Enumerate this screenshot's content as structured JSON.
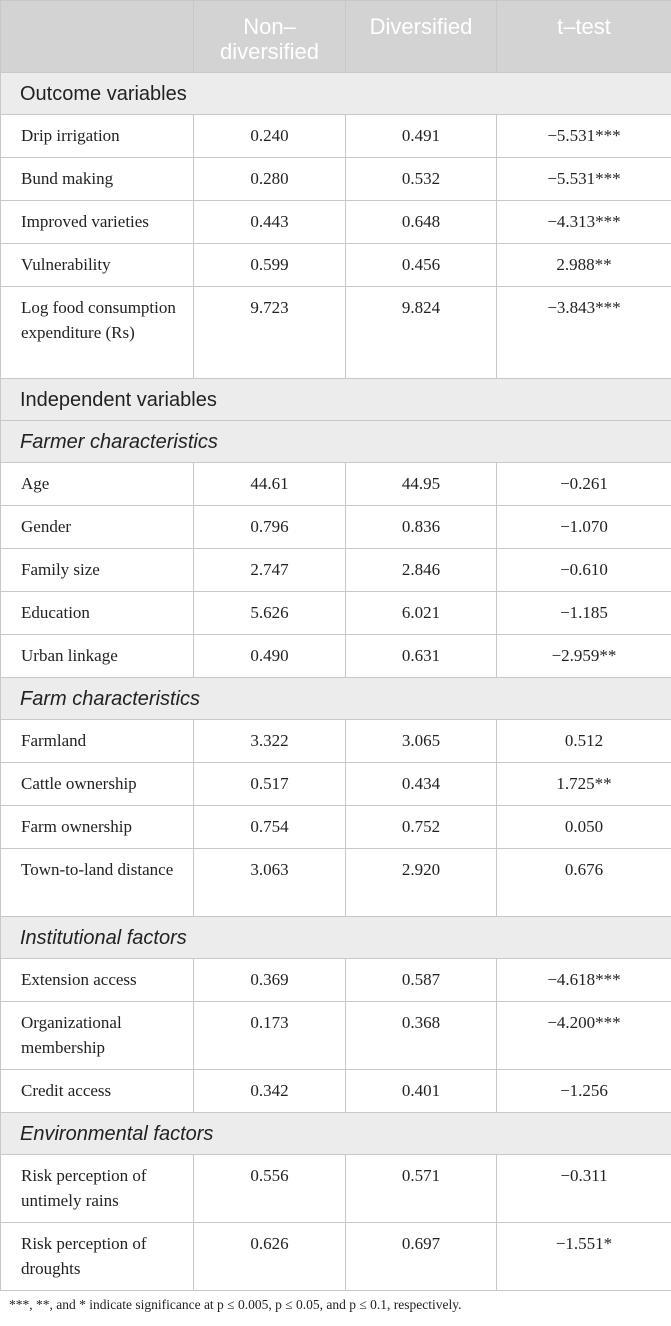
{
  "header": {
    "col1": "",
    "col2": "Non– diversified",
    "col3": "Diversified",
    "col4": "t–test"
  },
  "sections": {
    "outcome": "Outcome variables",
    "independent": "Independent variables",
    "farmer": "Farmer characteristics",
    "farm": "Farm characteristics",
    "institutional": "Institutional factors",
    "environmental": "Environmental factors"
  },
  "rows": {
    "drip": {
      "label": "Drip irrigation",
      "non": "0.240",
      "div": "0.491",
      "t": "−5.531***"
    },
    "bund": {
      "label": "Bund making",
      "non": "0.280",
      "div": "0.532",
      "t": "−5.531***"
    },
    "improved": {
      "label": "Improved varieties",
      "non": "0.443",
      "div": "0.648",
      "t": "−4.313***"
    },
    "vuln": {
      "label": "Vulnerability",
      "non": "0.599",
      "div": "0.456",
      "t": "2.988**"
    },
    "logfood": {
      "label": "Log food consumption expenditure (Rs)",
      "non": "9.723",
      "div": "9.824",
      "t": "−3.843***"
    },
    "age": {
      "label": "Age",
      "non": "44.61",
      "div": "44.95",
      "t": "−0.261"
    },
    "gender": {
      "label": "Gender",
      "non": "0.796",
      "div": "0.836",
      "t": "−1.070"
    },
    "family": {
      "label": "Family size",
      "non": "2.747",
      "div": "2.846",
      "t": "−0.610"
    },
    "education": {
      "label": "Education",
      "non": "5.626",
      "div": "6.021",
      "t": "−1.185"
    },
    "urban": {
      "label": "Urban linkage",
      "non": "0.490",
      "div": "0.631",
      "t": "−2.959**"
    },
    "farmland": {
      "label": "Farmland",
      "non": "3.322",
      "div": "3.065",
      "t": "0.512"
    },
    "cattle": {
      "label": "Cattle ownership",
      "non": "0.517",
      "div": "0.434",
      "t": "1.725**"
    },
    "farmown": {
      "label": "Farm ownership",
      "non": "0.754",
      "div": "0.752",
      "t": "0.050"
    },
    "town": {
      "label": "Town-to-land distance",
      "non": "3.063",
      "div": "2.920",
      "t": "0.676"
    },
    "extension": {
      "label": "Extension access",
      "non": "0.369",
      "div": "0.587",
      "t": "−4.618***"
    },
    "org": {
      "label": "Organizational membership",
      "non": "0.173",
      "div": "0.368",
      "t": "−4.200***"
    },
    "credit": {
      "label": "Credit access",
      "non": "0.342",
      "div": "0.401",
      "t": "−1.256"
    },
    "rains": {
      "label": "Risk perception of untimely rains",
      "non": "0.556",
      "div": "0.571",
      "t": "−0.311"
    },
    "droughts": {
      "label": "Risk perception of droughts",
      "non": "0.626",
      "div": "0.697",
      "t": "−1.551*"
    }
  },
  "footnote": "***, **, and * indicate significance at p ≤ 0.005, p ≤ 0.05, and p ≤ 0.1, respectively."
}
